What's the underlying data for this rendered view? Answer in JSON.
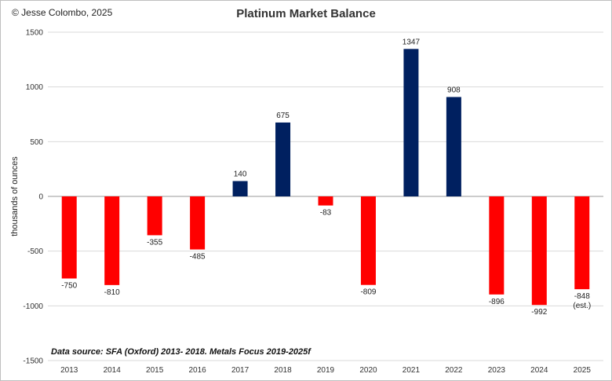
{
  "credit": "© Jesse Colombo, 2025",
  "source_note": "Data source: SFA (Oxford) 2013- 2018. Metals Focus 2019-2025f",
  "colors": {
    "deficit": "#ff0000",
    "surplus": "#002060",
    "grid": "#d9d9d9",
    "axis": "#999999"
  },
  "chart_data": {
    "type": "bar",
    "title": "Platinum Market Balance",
    "xlabel": "",
    "ylabel": "thousands of ounces",
    "ylim": [
      -1500,
      1500
    ],
    "yticks": [
      -1500,
      -1000,
      -500,
      0,
      500,
      1000,
      1500
    ],
    "grid": true,
    "categories": [
      "2013",
      "2014",
      "2015",
      "2016",
      "2017",
      "2018",
      "2019",
      "2020",
      "2021",
      "2022",
      "2023",
      "2024",
      "2025"
    ],
    "values": [
      -750,
      -810,
      -355,
      -485,
      140,
      675,
      -83,
      -809,
      1347,
      908,
      -896,
      -992,
      -848
    ],
    "annotations": [
      {
        "category": "2025",
        "text": "(est.)"
      }
    ]
  }
}
